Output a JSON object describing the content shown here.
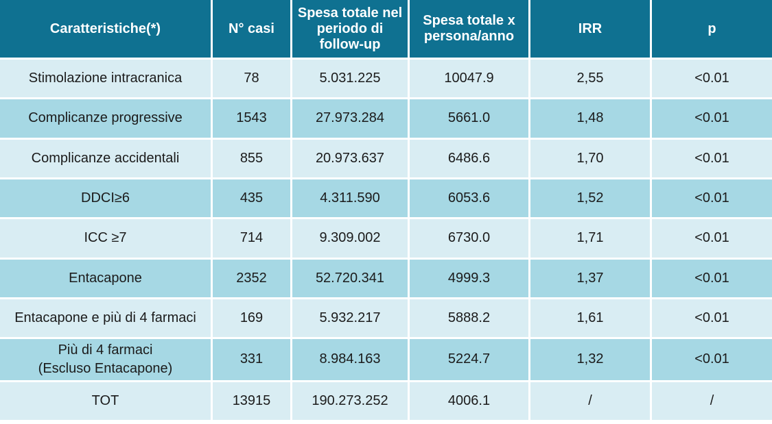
{
  "table": {
    "headers": [
      "Caratteristiche(*)",
      "N° casi",
      "Spesa totale nel periodo di follow-up",
      "Spesa totale x persona/anno",
      "IRR",
      "p"
    ],
    "rows": [
      [
        "Stimolazione intracranica",
        "78",
        "5.031.225",
        "10047.9",
        "2,55",
        "<0.01"
      ],
      [
        "Complicanze progressive",
        "1543",
        "27.973.284",
        "5661.0",
        "1,48",
        "<0.01"
      ],
      [
        "Complicanze accidentali",
        "855",
        "20.973.637",
        "6486.6",
        "1,70",
        "<0.01"
      ],
      [
        "DDCI≥6",
        "435",
        "4.311.590",
        "6053.6",
        "1,52",
        "<0.01"
      ],
      [
        "ICC ≥7",
        "714",
        "9.309.002",
        "6730.0",
        "1,71",
        "<0.01"
      ],
      [
        "Entacapone",
        "2352",
        "52.720.341",
        "4999.3",
        "1,37",
        "<0.01"
      ],
      [
        "Entacapone e più di 4 farmaci",
        "169",
        "5.932.217",
        "5888.2",
        "1,61",
        "<0.01"
      ],
      [
        "Più di 4 farmaci\n(Escluso Entacapone)",
        "331",
        "8.984.163",
        "5224.7",
        "1,32",
        "<0.01"
      ],
      [
        "TOT",
        "13915",
        "190.273.252",
        "4006.1",
        "/",
        "/"
      ]
    ]
  },
  "colors": {
    "header_bg": "#0f7191",
    "row_light": "#d9edf3",
    "row_dark": "#a6d8e4"
  }
}
